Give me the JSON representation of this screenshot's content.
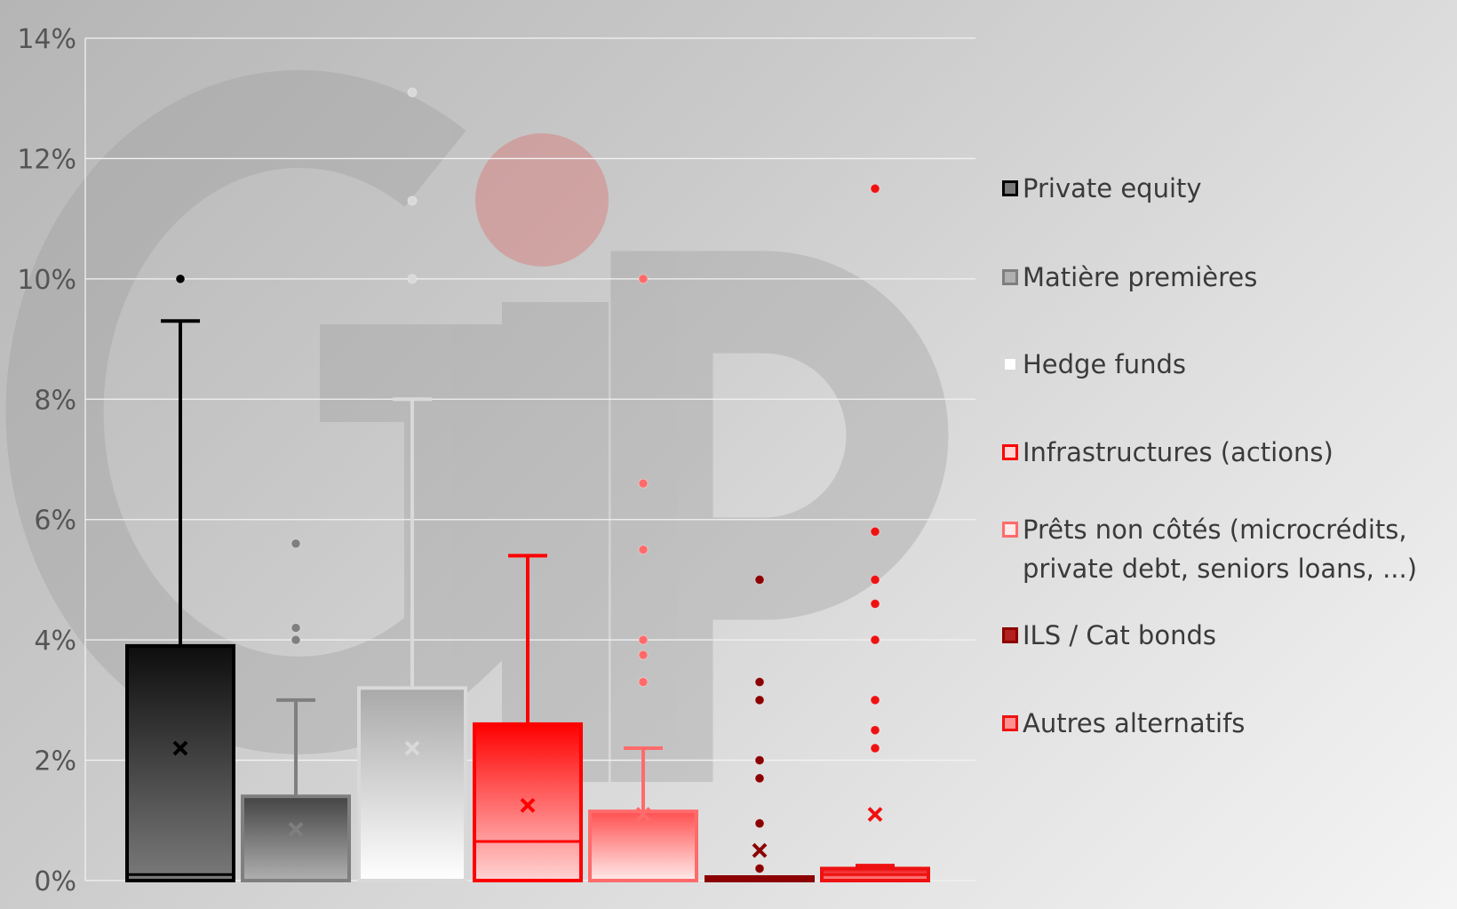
{
  "chart_data": {
    "type": "box",
    "title": "",
    "xlabel": "",
    "ylabel": "",
    "ylim": [
      0,
      14
    ],
    "yticks": [
      "0%",
      "2%",
      "4%",
      "6%",
      "8%",
      "10%",
      "12%",
      "14%"
    ],
    "grid": true,
    "legend_position": "right",
    "watermark": "GIP",
    "series": [
      {
        "name": "Private equity",
        "color": "#000000",
        "min": 0,
        "q1": 0,
        "median": 0.1,
        "q3": 3.9,
        "max": 9.3,
        "mean": 2.2,
        "outliers": [
          10.0
        ]
      },
      {
        "name": "Matière premières",
        "color": "#7f7f7f",
        "min": 0,
        "q1": 0,
        "median": 0,
        "q3": 1.4,
        "max": 3.0,
        "mean": 0.85,
        "outliers": [
          4.0,
          4.2,
          5.6
        ]
      },
      {
        "name": "Hedge funds",
        "color": "#d9d9d9",
        "min": 0,
        "q1": 0,
        "median": 0,
        "q3": 3.2,
        "max": 8.0,
        "mean": 2.2,
        "outliers": [
          10.0,
          11.3,
          13.1
        ]
      },
      {
        "name": "Infrastructures (actions)",
        "color": "#ff0000",
        "min": 0,
        "q1": 0,
        "median": 0.65,
        "q3": 2.6,
        "max": 5.4,
        "mean": 1.25,
        "outliers": []
      },
      {
        "name": "Prêts non côtés (microcrédits,\nprivate debt, seniors loans, ...)",
        "color": "#ff6b6b",
        "min": 0,
        "q1": 0,
        "median": 0,
        "q3": 1.15,
        "max": 2.2,
        "mean": 1.1,
        "outliers": [
          3.3,
          3.75,
          4.0,
          5.5,
          6.6,
          10.0
        ]
      },
      {
        "name": "ILS / Cat bonds",
        "color": "#8b0000",
        "min": 0,
        "q1": 0,
        "median": 0,
        "q3": 0.02,
        "max": 0.02,
        "mean": 0.5,
        "outliers": [
          0.2,
          0.95,
          1.7,
          2.0,
          3.0,
          3.3,
          5.0
        ]
      },
      {
        "name": "Autres alternatifs",
        "color": "#ee1111",
        "min": 0,
        "q1": 0,
        "median": 0.1,
        "q3": 0.2,
        "max": 0.25,
        "mean": 1.1,
        "outliers": [
          2.2,
          2.5,
          3.0,
          4.0,
          4.6,
          5.0,
          5.8,
          11.5
        ]
      }
    ]
  }
}
